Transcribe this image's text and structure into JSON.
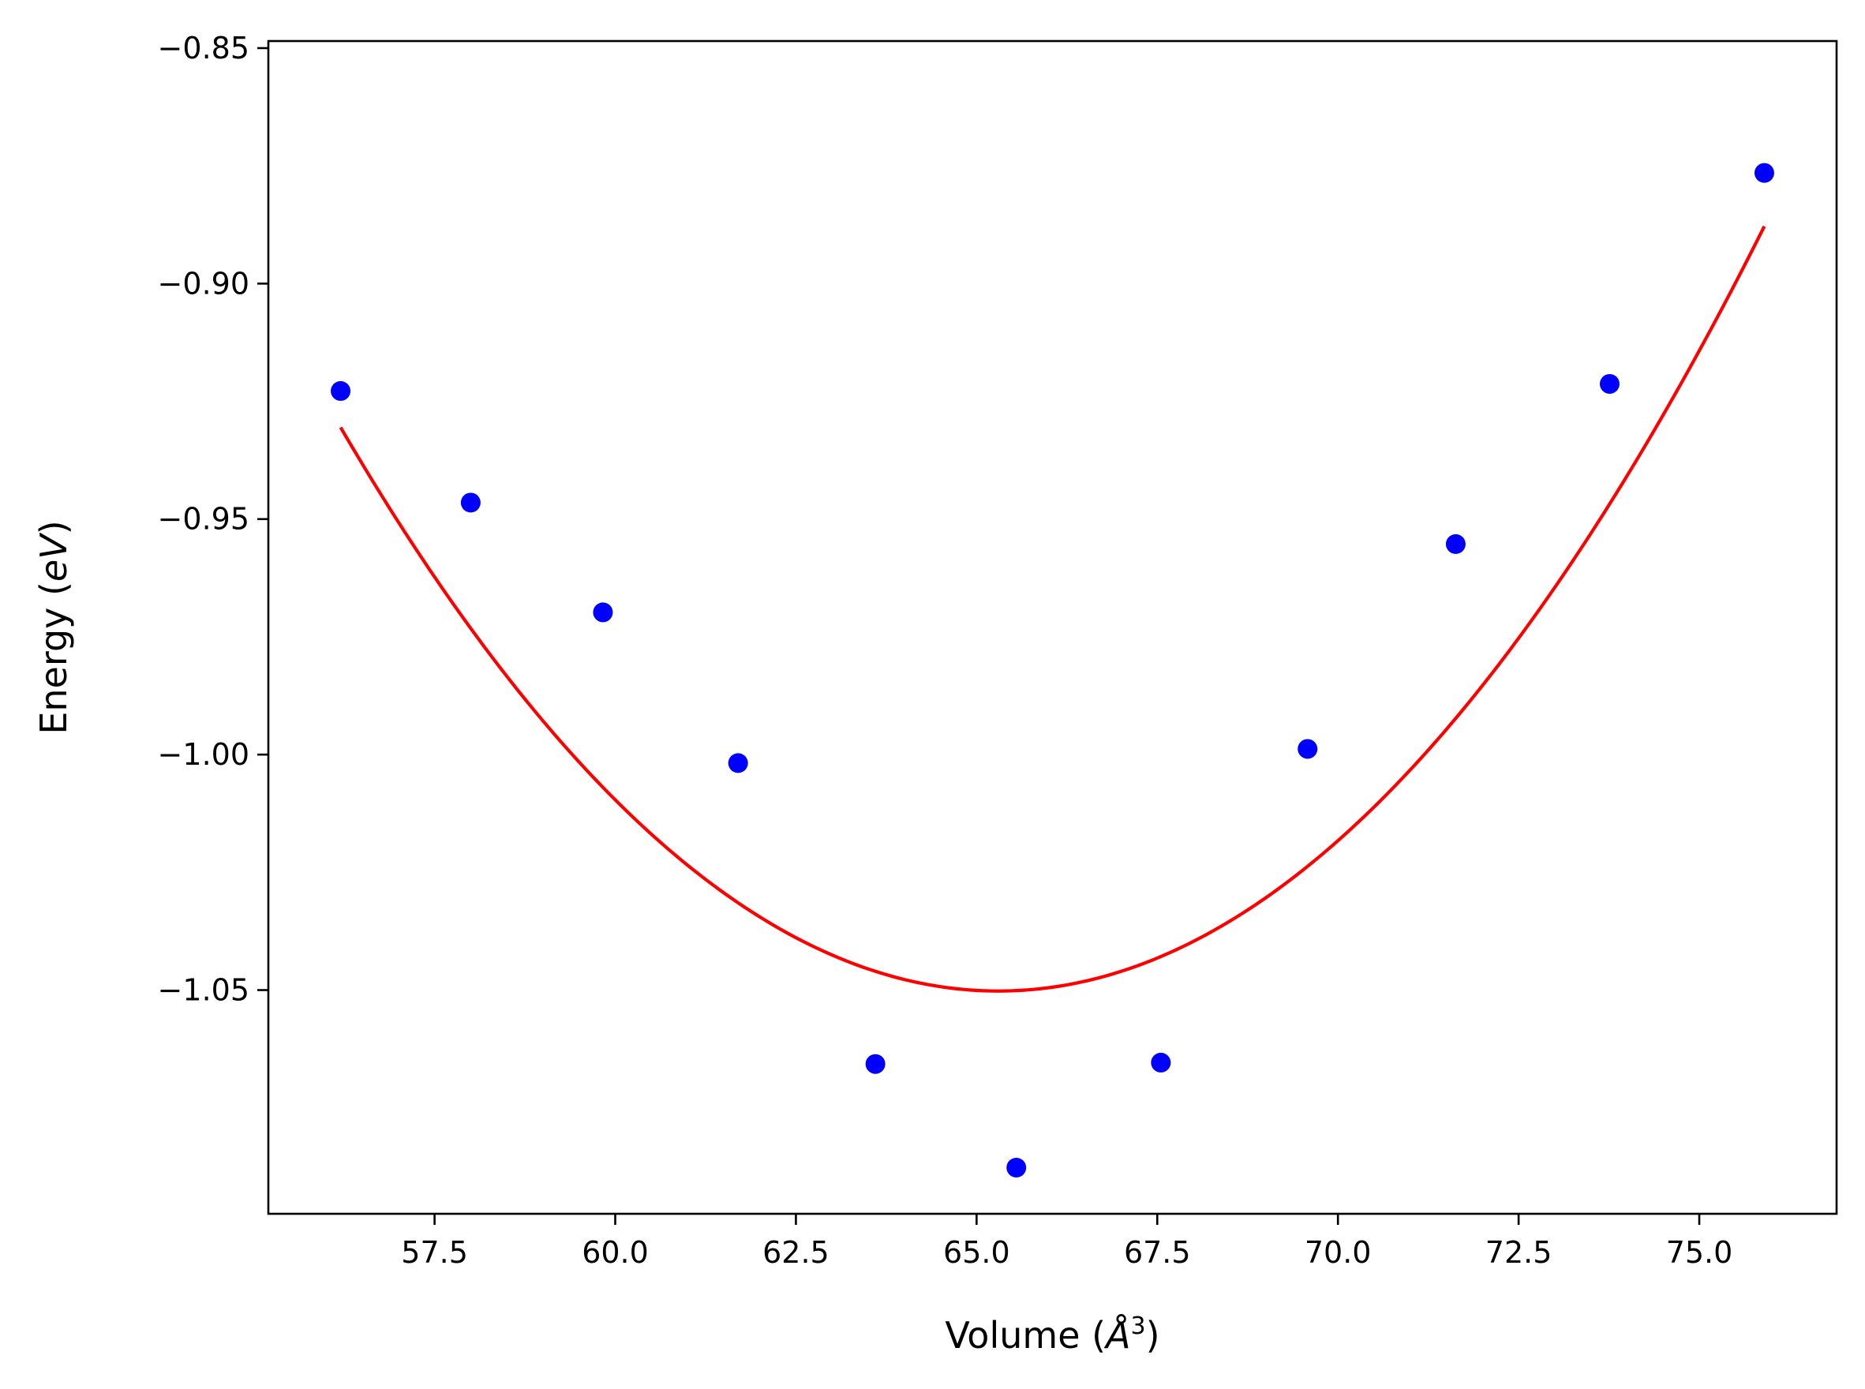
{
  "chart_data": {
    "type": "scatter",
    "title": "",
    "xlabel": "Volume (Å³)",
    "xlabel_base": "Volume (",
    "xlabel_unit": "Å",
    "xlabel_sup": "3",
    "xlabel_close": ")",
    "ylabel": "Energy (eV)",
    "ylabel_base": "Energy (",
    "ylabel_unit": "eV",
    "ylabel_close": ")",
    "xlim": [
      55.2,
      76.9
    ],
    "ylim": [
      -1.0975,
      -0.8485
    ],
    "xticks": [
      57.5,
      60.0,
      62.5,
      65.0,
      67.5,
      70.0,
      72.5,
      75.0
    ],
    "xtick_labels": [
      "57.5",
      "60.0",
      "62.5",
      "65.0",
      "67.5",
      "70.0",
      "72.5",
      "75.0"
    ],
    "yticks": [
      -1.05,
      -1.0,
      -0.95,
      -0.9,
      -0.85
    ],
    "ytick_labels": [
      "−1.05",
      "−1.00",
      "−0.95",
      "−0.90",
      "−0.85"
    ],
    "grid": false,
    "series": [
      {
        "kind": "scatter",
        "color": "#0000ff",
        "x": [
          56.2,
          58.0,
          59.83,
          61.7,
          63.6,
          65.55,
          67.55,
          69.58,
          71.63,
          73.76,
          75.9
        ],
        "y": [
          -0.9228,
          -0.9465,
          -0.9698,
          -1.0018,
          -1.0657,
          -1.0877,
          -1.0654,
          -0.9988,
          -0.9553,
          -0.9213,
          -0.8765
        ]
      },
      {
        "kind": "line",
        "color": "#ff0000",
        "fit": "quadratic",
        "vertex_x": 65.3,
        "vertex_y": -1.0502,
        "curvature": 0.001445,
        "x_range": [
          56.2,
          75.9
        ]
      }
    ]
  }
}
